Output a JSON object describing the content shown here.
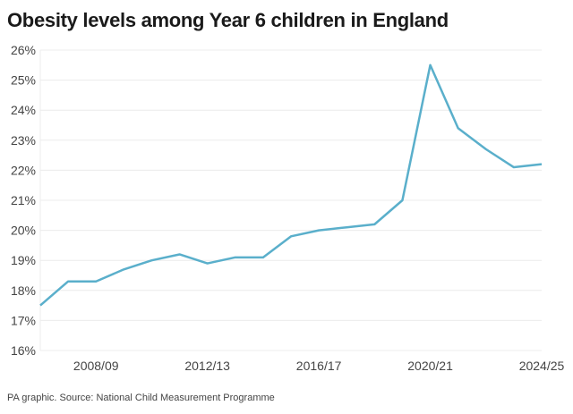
{
  "chart_data": {
    "type": "line",
    "title": "Obesity levels among Year 6 children in England",
    "xlabel": "",
    "ylabel": "",
    "x": [
      "2006/07",
      "2007/08",
      "2008/09",
      "2009/10",
      "2010/11",
      "2011/12",
      "2012/13",
      "2013/14",
      "2014/15",
      "2015/16",
      "2016/17",
      "2017/18",
      "2018/19",
      "2019/20",
      "2020/21",
      "2021/22",
      "2022/23",
      "2023/24",
      "2024/25"
    ],
    "values": [
      17.5,
      18.3,
      18.3,
      18.7,
      19.0,
      19.2,
      18.9,
      19.1,
      19.1,
      19.8,
      20.0,
      20.1,
      20.2,
      21.0,
      25.5,
      23.4,
      22.7,
      22.1,
      22.2
    ],
    "ylim": [
      16,
      26
    ],
    "y_ticks": [
      "16%",
      "17%",
      "18%",
      "19%",
      "20%",
      "21%",
      "22%",
      "23%",
      "24%",
      "25%",
      "26%"
    ],
    "x_ticks": [
      "2008/09",
      "2012/13",
      "2016/17",
      "2020/21",
      "2024/25"
    ],
    "grid": true,
    "line_color": "#5aafcb",
    "source": "PA graphic. Source: National Child Measurement Programme"
  }
}
